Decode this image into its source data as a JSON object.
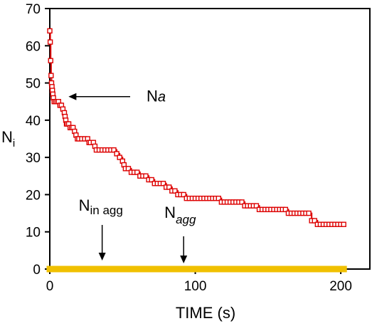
{
  "chart_data": {
    "type": "scatter",
    "title": "",
    "xlabel": "TIME (s)",
    "ylabel": {
      "main": "N",
      "sub": "i"
    },
    "xlim": [
      0,
      220
    ],
    "ylim": [
      0,
      70
    ],
    "x_ticks": [
      0,
      100,
      200
    ],
    "y_ticks": [
      0,
      10,
      20,
      30,
      40,
      50,
      60,
      70
    ],
    "grid": false,
    "legend": "none",
    "annotations": [
      {
        "id": "Na",
        "main": "N",
        "sub": "a",
        "italic_sub": true,
        "sub_position": "baseline",
        "arrow_to": [
          8,
          45
        ]
      },
      {
        "id": "Ninagg",
        "main": "N",
        "sub": "in agg",
        "italic_sub": false,
        "sub_position": "subscript",
        "arrow_to": [
          36,
          2
        ]
      },
      {
        "id": "Nagg",
        "main": "N",
        "sub": "agg",
        "italic_sub": true,
        "sub_position": "subscript",
        "arrow_to": [
          92,
          2
        ]
      }
    ],
    "series": [
      {
        "color": "#dd0000",
        "marker": "open-square",
        "points": [
          [
            0,
            64
          ],
          [
            0.3,
            61
          ],
          [
            0.6,
            56
          ],
          [
            0.9,
            52
          ],
          [
            1.2,
            50
          ],
          [
            1.5,
            49
          ],
          [
            1.8,
            48
          ],
          [
            2.1,
            47
          ],
          [
            2.5,
            46
          ],
          [
            3,
            45
          ],
          [
            4,
            45
          ],
          [
            5,
            45
          ],
          [
            6,
            45
          ],
          [
            7,
            44
          ],
          [
            8,
            44
          ],
          [
            9,
            43
          ],
          [
            10,
            42
          ],
          [
            10.5,
            41
          ],
          [
            11,
            40
          ],
          [
            11.5,
            39
          ],
          [
            12,
            39
          ],
          [
            13,
            39
          ],
          [
            14,
            38
          ],
          [
            15,
            38
          ],
          [
            16,
            38
          ],
          [
            17,
            37
          ],
          [
            18,
            36
          ],
          [
            19,
            35
          ],
          [
            20,
            35
          ],
          [
            22,
            35
          ],
          [
            24,
            35
          ],
          [
            26,
            35
          ],
          [
            27,
            34
          ],
          [
            28,
            34
          ],
          [
            30,
            34
          ],
          [
            31,
            33
          ],
          [
            32,
            32
          ],
          [
            34,
            32
          ],
          [
            36,
            32
          ],
          [
            38,
            32
          ],
          [
            40,
            32
          ],
          [
            42,
            32
          ],
          [
            44,
            32
          ],
          [
            46,
            31
          ],
          [
            48,
            30
          ],
          [
            50,
            29
          ],
          [
            51,
            28
          ],
          [
            52,
            27
          ],
          [
            54,
            27
          ],
          [
            56,
            26
          ],
          [
            58,
            26
          ],
          [
            60,
            26
          ],
          [
            62,
            25
          ],
          [
            64,
            25
          ],
          [
            66,
            25
          ],
          [
            68,
            24
          ],
          [
            70,
            24
          ],
          [
            72,
            23
          ],
          [
            74,
            23
          ],
          [
            76,
            23
          ],
          [
            78,
            23
          ],
          [
            80,
            22
          ],
          [
            82,
            22
          ],
          [
            84,
            21
          ],
          [
            86,
            21
          ],
          [
            88,
            20
          ],
          [
            90,
            20
          ],
          [
            92,
            20
          ],
          [
            94,
            19
          ],
          [
            96,
            19
          ],
          [
            98,
            19
          ],
          [
            100,
            19
          ],
          [
            102,
            19
          ],
          [
            104,
            19
          ],
          [
            106,
            19
          ],
          [
            108,
            19
          ],
          [
            110,
            19
          ],
          [
            112,
            19
          ],
          [
            114,
            19
          ],
          [
            116,
            19
          ],
          [
            118,
            18
          ],
          [
            120,
            18
          ],
          [
            122,
            18
          ],
          [
            124,
            18
          ],
          [
            126,
            18
          ],
          [
            128,
            18
          ],
          [
            130,
            18
          ],
          [
            132,
            18
          ],
          [
            134,
            17
          ],
          [
            136,
            17
          ],
          [
            138,
            17
          ],
          [
            140,
            17
          ],
          [
            142,
            17
          ],
          [
            144,
            16
          ],
          [
            146,
            16
          ],
          [
            148,
            16
          ],
          [
            150,
            16
          ],
          [
            152,
            16
          ],
          [
            154,
            16
          ],
          [
            156,
            16
          ],
          [
            158,
            16
          ],
          [
            160,
            16
          ],
          [
            162,
            16
          ],
          [
            164,
            15
          ],
          [
            166,
            15
          ],
          [
            168,
            15
          ],
          [
            170,
            15
          ],
          [
            172,
            15
          ],
          [
            174,
            15
          ],
          [
            176,
            15
          ],
          [
            178,
            15
          ],
          [
            180,
            13
          ],
          [
            182,
            13
          ],
          [
            184,
            12
          ],
          [
            186,
            12
          ],
          [
            188,
            12
          ],
          [
            190,
            12
          ],
          [
            192,
            12
          ],
          [
            194,
            12
          ],
          [
            196,
            12
          ],
          [
            198,
            12
          ],
          [
            200,
            12
          ],
          [
            202,
            12
          ]
        ]
      },
      {
        "color": "#f0c000",
        "marker": "filled-square",
        "x_start": 0,
        "x_end": 202,
        "value": 0
      }
    ]
  }
}
